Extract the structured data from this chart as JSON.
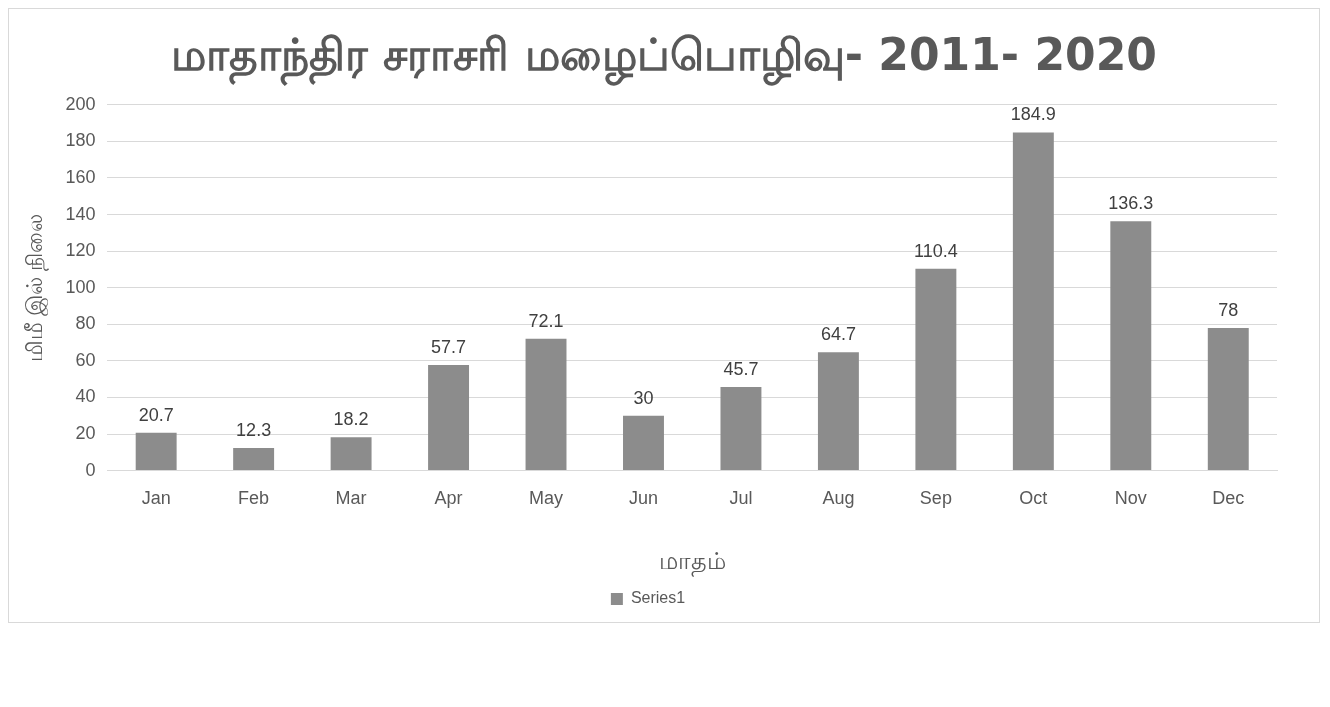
{
  "chart_data": {
    "type": "bar",
    "title": "மாதாந்திர சராசரி மழைப்பொழிவு- 2011- 2020",
    "xlabel": "மாதம்",
    "ylabel": "மிமீ இல் நிலை",
    "categories": [
      "Jan",
      "Feb",
      "Mar",
      "Apr",
      "May",
      "Jun",
      "Jul",
      "Aug",
      "Sep",
      "Oct",
      "Nov",
      "Dec"
    ],
    "series": [
      {
        "name": "Series1",
        "color": "#8c8c8c",
        "values": [
          20.7,
          12.3,
          18.2,
          57.7,
          72.1,
          30,
          45.7,
          64.7,
          110.4,
          184.9,
          136.3,
          78
        ]
      }
    ],
    "ylim": [
      0,
      200
    ],
    "yticks": [
      0,
      20,
      40,
      60,
      80,
      100,
      120,
      140,
      160,
      180,
      200
    ],
    "grid": "y",
    "legend": "bottom",
    "data_labels": true
  }
}
